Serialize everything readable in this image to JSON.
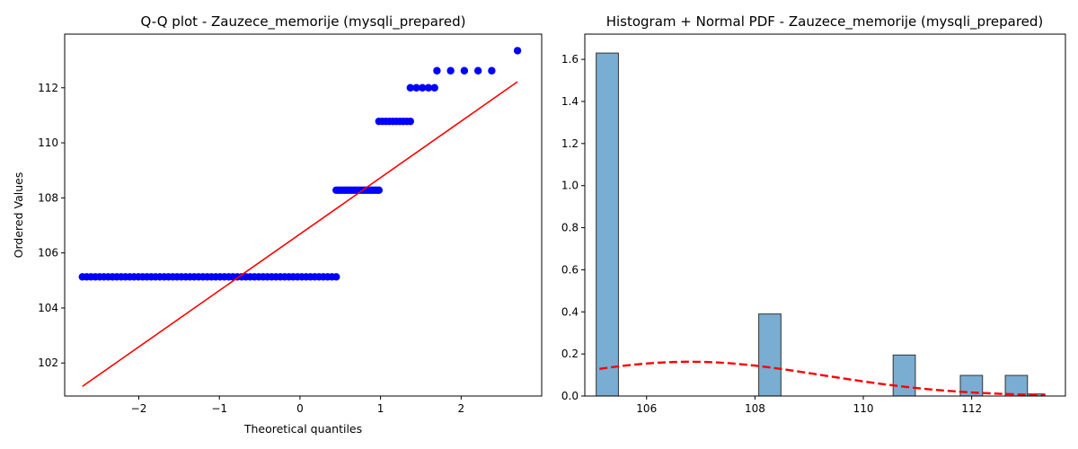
{
  "chart_data": [
    {
      "type": "scatter",
      "title": "Q-Q plot - Zauzece_memorije (mysqli_prepared)",
      "xlabel": "Theoretical quantiles",
      "ylabel": "Ordered Values",
      "xlim": [
        -2.92,
        3.0
      ],
      "ylim": [
        100.8,
        113.95
      ],
      "xticks": [
        -2,
        -1,
        0,
        1,
        2
      ],
      "xtick_labels": [
        "−2",
        "−1",
        "0",
        "1",
        "2"
      ],
      "yticks": [
        102,
        104,
        106,
        108,
        110,
        112
      ],
      "ytick_labels": [
        "102",
        "104",
        "106",
        "108",
        "110",
        "112"
      ],
      "point_color": "#0000ff",
      "line_color": "#ff0000",
      "fit_line": {
        "x": [
          -2.7,
          2.7
        ],
        "y": [
          101.15,
          112.22
        ]
      },
      "groups": [
        {
          "y": 105.13,
          "x_from": -2.7,
          "x_to": 0.45,
          "count": 60
        },
        {
          "y": 108.28,
          "x_from": 0.45,
          "x_to": 0.98,
          "count": 20
        },
        {
          "y": 110.78,
          "x_from": 0.98,
          "x_to": 1.37,
          "count": 10
        },
        {
          "y": 112.0,
          "x_from": 1.37,
          "x_to": 1.67,
          "count": 5
        },
        {
          "y": 112.62,
          "x_from": 1.7,
          "x_to": 2.38,
          "count": 5
        },
        {
          "y": 113.35,
          "x_from": 2.7,
          "x_to": 2.7,
          "count": 1
        }
      ],
      "grid": false
    },
    {
      "type": "bar",
      "title": "Histogram + Normal PDF - Zauzece_memorije (mysqli_prepared)",
      "xlabel": "",
      "ylabel": "",
      "xlim": [
        104.86,
        113.73
      ],
      "ylim": [
        0,
        1.72
      ],
      "xticks": [
        106,
        108,
        110,
        112
      ],
      "xtick_labels": [
        "106",
        "108",
        "110",
        "112"
      ],
      "yticks": [
        0.0,
        0.2,
        0.4,
        0.6,
        0.8,
        1.0,
        1.2,
        1.4,
        1.6
      ],
      "ytick_labels": [
        "0.0",
        "0.2",
        "0.4",
        "0.6",
        "0.8",
        "1.0",
        "1.2",
        "1.4",
        "1.6"
      ],
      "bar_color": "#1f77b4",
      "bar_edge_color": "#333333",
      "bar_opacity": 0.6,
      "bins": [
        {
          "x0": 105.07,
          "x1": 105.48,
          "value": 1.63
        },
        {
          "x0": 108.07,
          "x1": 108.48,
          "value": 0.39
        },
        {
          "x0": 110.55,
          "x1": 110.96,
          "value": 0.195
        },
        {
          "x0": 111.79,
          "x1": 112.2,
          "value": 0.098
        },
        {
          "x0": 112.62,
          "x1": 113.03,
          "value": 0.098
        },
        {
          "x0": 113.03,
          "x1": 113.35,
          "value": 0.01
        }
      ],
      "pdf": {
        "mean": 106.8,
        "std": 2.45,
        "x_range": [
          105.13,
          113.35
        ],
        "color": "#ff0000",
        "style": "dashed"
      },
      "grid": false
    }
  ]
}
